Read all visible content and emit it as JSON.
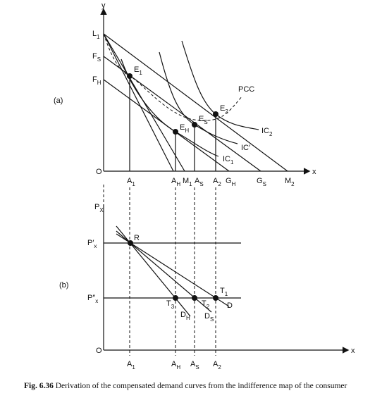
{
  "panel_a": {
    "tag": "(a)",
    "y_axis": "y",
    "x_axis": "x",
    "origin": "O",
    "labels": [
      {
        "text": "L",
        "sub": "1"
      },
      {
        "text": "F",
        "sub": "S"
      },
      {
        "text": "F",
        "sub": "H"
      },
      {
        "text": "E",
        "sub": "1"
      },
      {
        "text": "E",
        "sub": "H"
      },
      {
        "text": "E",
        "sub": "S"
      },
      {
        "text": "E",
        "sub": "2"
      },
      {
        "text": "PCC"
      },
      {
        "text": "IC",
        "sub": "2"
      },
      {
        "text": "IC′"
      },
      {
        "text": "IC",
        "sub": "1"
      },
      {
        "text": "A",
        "sub": "1"
      },
      {
        "text": "A",
        "sub": "H"
      },
      {
        "text": "M",
        "sub": "1"
      },
      {
        "text": "A",
        "sub": "S"
      },
      {
        "text": "A",
        "sub": "2"
      },
      {
        "text": "G",
        "sub": "H"
      },
      {
        "text": "G",
        "sub": "S"
      },
      {
        "text": "M",
        "sub": "2"
      }
    ]
  },
  "panel_b": {
    "tag": "(b)",
    "x_axis": "x",
    "origin": "O",
    "labels": [
      {
        "text": "P",
        "sub": "X"
      },
      {
        "text": "P′",
        "sub": "x"
      },
      {
        "text": "P″",
        "sub": "x"
      },
      {
        "text": "R"
      },
      {
        "text": "T",
        "sub": "1"
      },
      {
        "text": "T",
        "sub": "2"
      },
      {
        "text": "T",
        "sub": "3"
      },
      {
        "text": "D",
        "sub": "H"
      },
      {
        "text": "D",
        "sub": "S"
      },
      {
        "text": "D"
      },
      {
        "text": "A",
        "sub": "1"
      },
      {
        "text": "A",
        "sub": "H"
      },
      {
        "text": "A",
        "sub": "S"
      },
      {
        "text": "A",
        "sub": "2"
      }
    ]
  },
  "caption": {
    "label": "Fig. 6.36",
    "text": "Derivation of the compensated demand curves from the indifference map of the consumer"
  }
}
